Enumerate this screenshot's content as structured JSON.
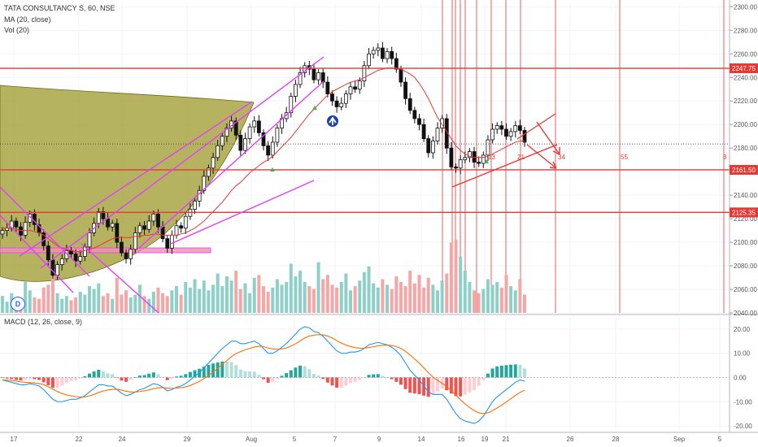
{
  "header": {
    "symbol_line": "TATA CONSULTANCY S, 60, NSE",
    "ma_label": "MA (20, close)",
    "vol_label": "Vol (20)",
    "macd_label": "MACD (12, 26, close, 9)",
    "source_badge": "D"
  },
  "colors": {
    "up": "#26a69a",
    "down": "#ef5350",
    "candle_border": "#111111",
    "level_line": "#e53935",
    "trendline": "#e040fb",
    "ma": "#e53935",
    "macd": "#2196f3",
    "signal": "#ff6d00",
    "cup_fill": "#9e9a2b"
  },
  "chart_data": [
    {
      "type": "candlestick",
      "title": "TATA CONSULTANCY S, 60, NSE",
      "y_ticks": [
        "2300.00",
        "2280.00",
        "2260.00",
        "2240.00",
        "2220.00",
        "2200.00",
        "2180.00",
        "2160.00",
        "2140.00",
        "2120.00",
        "2100.00",
        "2080.00",
        "2060.00",
        "2040.00"
      ],
      "ylim": [
        2040,
        2303
      ],
      "x_ticks": [
        "17",
        "22",
        "24",
        "29",
        "Aug",
        "5",
        "7",
        "9",
        "14",
        "16",
        "19",
        "21",
        "26",
        "28",
        "Sep",
        "5"
      ],
      "price_levels": [
        {
          "label": "2247.75",
          "value": 2247.75
        },
        {
          "label": "2161.50",
          "value": 2161.5
        },
        {
          "label": "2125.35",
          "value": 2125.35
        }
      ],
      "dotted_level": 2183.5,
      "fib_labels": [
        "13",
        "21",
        "34",
        "55",
        "8"
      ],
      "series": [
        {
          "name": "Close",
          "values": [
            2110,
            2112,
            2118,
            2113,
            2106,
            2117,
            2124,
            2115,
            2108,
            2097,
            2085,
            2072,
            2081,
            2086,
            2093,
            2090,
            2084,
            2088,
            2096,
            2108,
            2116,
            2126,
            2120,
            2113,
            2116,
            2100,
            2091,
            2086,
            2094,
            2108,
            2114,
            2111,
            2118,
            2124,
            2113,
            2103,
            2095,
            2106,
            2114,
            2112,
            2122,
            2128,
            2135,
            2144,
            2156,
            2163,
            2172,
            2182,
            2190,
            2197,
            2203,
            2191,
            2178,
            2188,
            2198,
            2203,
            2193,
            2182,
            2174,
            2185,
            2197,
            2205,
            2210,
            2224,
            2234,
            2244,
            2250,
            2247,
            2238,
            2244,
            2236,
            2226,
            2220,
            2215,
            2218,
            2226,
            2232,
            2230,
            2237,
            2250,
            2260,
            2263,
            2265,
            2256,
            2262,
            2256,
            2247,
            2236,
            2222,
            2212,
            2205,
            2200,
            2188,
            2176,
            2186,
            2197,
            2205,
            2180,
            2164,
            2163,
            2170,
            2172,
            2177,
            2168,
            2167,
            2174,
            2187,
            2196,
            2199,
            2196,
            2190,
            2194,
            2199,
            2195,
            2185
          ]
        }
      ],
      "ma_values": [
        2112,
        2112,
        2112,
        2111,
        2110,
        2110,
        2110,
        2109,
        2108,
        2106,
        2103,
        2100,
        2097,
        2095,
        2094,
        2093,
        2092,
        2092,
        2093,
        2094,
        2095,
        2097,
        2099,
        2101,
        2103,
        2104,
        2104,
        2104,
        2104,
        2105,
        2105,
        2106,
        2106,
        2107,
        2107,
        2106,
        2106,
        2106,
        2106,
        2107,
        2108,
        2110,
        2112,
        2115,
        2118,
        2122,
        2126,
        2130,
        2134,
        2139,
        2144,
        2148,
        2151,
        2155,
        2159,
        2162,
        2165,
        2168,
        2170,
        2173,
        2177,
        2181,
        2185,
        2189,
        2194,
        2199,
        2204,
        2209,
        2213,
        2217,
        2221,
        2225,
        2228,
        2230,
        2232,
        2234,
        2236,
        2237,
        2238,
        2240,
        2242,
        2244,
        2246,
        2247,
        2248,
        2248,
        2248,
        2247,
        2245,
        2243,
        2240,
        2235,
        2229,
        2222,
        2214,
        2206,
        2200,
        2194,
        2188,
        2182,
        2178,
        2175,
        2173,
        2172,
        2172,
        2172,
        2173,
        2175,
        2177,
        2179,
        2181,
        2183,
        2185,
        2186,
        2186
      ],
      "volume": [
        12,
        8,
        14,
        10,
        9,
        22,
        16,
        11,
        10,
        18,
        20,
        26,
        14,
        10,
        12,
        9,
        11,
        15,
        13,
        19,
        17,
        21,
        12,
        14,
        10,
        25,
        13,
        16,
        11,
        13,
        20,
        12,
        10,
        15,
        18,
        14,
        12,
        16,
        19,
        13,
        22,
        18,
        24,
        17,
        23,
        16,
        20,
        28,
        19,
        26,
        23,
        30,
        17,
        21,
        14,
        25,
        27,
        19,
        15,
        18,
        24,
        20,
        22,
        35,
        26,
        30,
        22,
        19,
        17,
        36,
        24,
        27,
        20,
        18,
        22,
        28,
        16,
        19,
        23,
        29,
        33,
        21,
        18,
        24,
        20,
        17,
        26,
        22,
        19,
        30,
        21,
        27,
        18,
        25,
        20,
        16,
        23,
        28,
        50,
        52,
        40,
        30,
        22,
        16,
        14,
        17,
        24,
        20,
        22,
        18,
        27,
        19,
        16,
        24,
        13
      ]
    },
    {
      "type": "macd",
      "title": "MACD (12, 26, close, 9)",
      "y_ticks": [
        "20.00",
        "10.00",
        "0.00",
        "-10.00",
        "-20.00"
      ],
      "ylim": [
        -22,
        25
      ],
      "macd": [
        -1,
        -1.5,
        -2,
        -2.5,
        -3,
        -3,
        -2.5,
        -3,
        -3.5,
        -5,
        -7,
        -9,
        -10,
        -10,
        -9.5,
        -9,
        -9,
        -8.5,
        -7.5,
        -6,
        -4.5,
        -3,
        -3,
        -3.5,
        -3.5,
        -5,
        -6.5,
        -7.5,
        -7,
        -6,
        -5,
        -4.5,
        -3.5,
        -2.5,
        -3,
        -4,
        -5.5,
        -5,
        -4,
        -3.5,
        -2.5,
        -1,
        0.5,
        2,
        4,
        6,
        8,
        10,
        12,
        13.5,
        15,
        15,
        14,
        14,
        14.5,
        15,
        14,
        12,
        10,
        10,
        11,
        12.5,
        14,
        16,
        18,
        20,
        21,
        20.5,
        19,
        18.5,
        17,
        15,
        13,
        11,
        10,
        10,
        10.5,
        10.5,
        11,
        12,
        13.5,
        14,
        14.5,
        14,
        13.5,
        12.5,
        11,
        9,
        6,
        3,
        1,
        -1,
        -3.5,
        -6,
        -7,
        -7,
        -7,
        -9,
        -12,
        -15,
        -17,
        -18,
        -18.5,
        -19,
        -18,
        -16,
        -13,
        -10,
        -8,
        -6.5,
        -5,
        -3.5,
        -2,
        -1,
        -1.5
      ],
      "signal": [
        -1,
        -1.1,
        -1.3,
        -1.5,
        -1.8,
        -2,
        -2.1,
        -2.3,
        -2.5,
        -3,
        -3.8,
        -4.8,
        -5.8,
        -6.6,
        -7.2,
        -7.6,
        -7.9,
        -8.1,
        -8,
        -7.6,
        -7,
        -6.2,
        -5.6,
        -5.2,
        -4.9,
        -4.9,
        -5.2,
        -5.7,
        -6,
        -6,
        -5.8,
        -5.5,
        -5.1,
        -4.6,
        -4.3,
        -4.2,
        -4.4,
        -4.5,
        -4.4,
        -4.2,
        -3.9,
        -3.3,
        -2.5,
        -1.6,
        -0.5,
        0.8,
        2.2,
        3.8,
        5.4,
        7,
        8.6,
        9.9,
        10.7,
        11.4,
        12,
        12.6,
        12.9,
        12.7,
        12.2,
        11.8,
        11.6,
        11.8,
        12.2,
        13,
        13.9,
        15.1,
        16.3,
        17.1,
        17.5,
        17.7,
        17.6,
        17.1,
        16.3,
        15.2,
        14.2,
        13.4,
        12.8,
        12.3,
        12.1,
        12.1,
        12.4,
        12.7,
        13.1,
        13.3,
        13.4,
        13.2,
        12.8,
        12,
        10.8,
        9.3,
        7.6,
        5.9,
        4,
        2,
        0.2,
        -1.2,
        -2.4,
        -3.7,
        -5.4,
        -7.3,
        -9.2,
        -10.9,
        -12.4,
        -13.7,
        -14.6,
        -14.9,
        -14.6,
        -13.7,
        -12.6,
        -11.4,
        -10.1,
        -8.8,
        -7.4,
        -6.2,
        -5.2
      ]
    }
  ]
}
